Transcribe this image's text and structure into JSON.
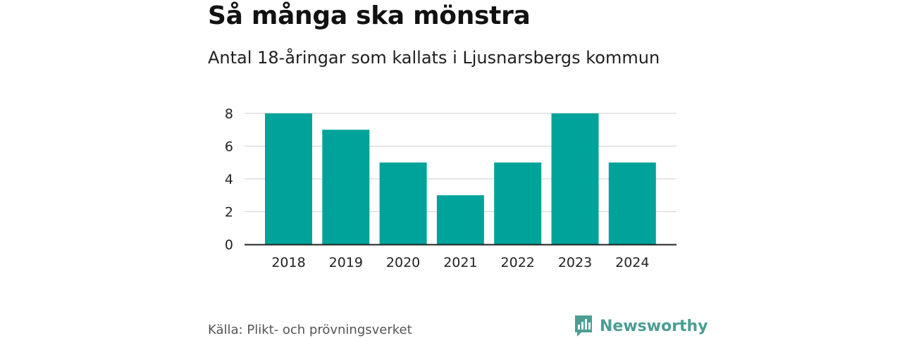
{
  "header": {
    "title": "Så många ska mönstra",
    "subtitle": "Antal 18-åringar som kallats i Ljusnarsbergs kommun"
  },
  "footer": {
    "source": "Källa: Plikt- och prövningsverket",
    "brand": "Newsworthy",
    "brand_icon": "newsworthy-bar-chart-logo-icon"
  },
  "colors": {
    "bar": "#00a39a",
    "grid": "#d9d9d9",
    "axis": "#222222",
    "brand": "#4b9e93"
  },
  "chart_data": {
    "type": "bar",
    "title": "Så många ska mönstra",
    "subtitle": "Antal 18-åringar som kallats i Ljusnarsbergs kommun",
    "categories": [
      "2018",
      "2019",
      "2020",
      "2021",
      "2022",
      "2023",
      "2024"
    ],
    "values": [
      8,
      7,
      5,
      3,
      5,
      8,
      5
    ],
    "xlabel": "",
    "ylabel": "",
    "ylim": [
      0,
      8
    ],
    "yticks": [
      "0",
      "2",
      "4",
      "6",
      "8"
    ],
    "grid": true,
    "legend": "none"
  }
}
